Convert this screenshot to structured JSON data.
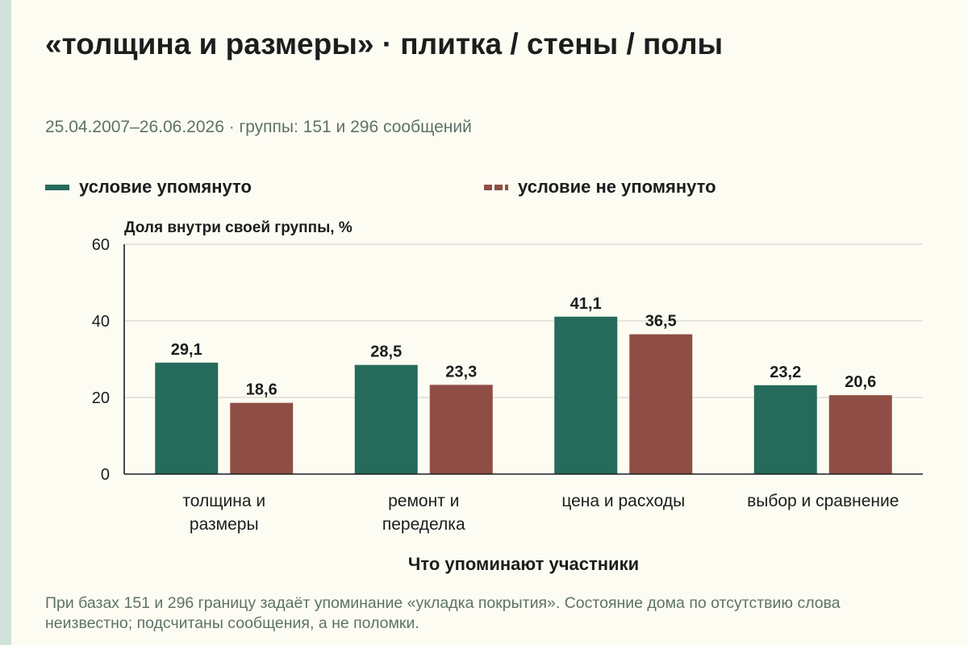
{
  "title": "«толщина и размеры» · плитка / стены / полы",
  "subtitle": "25.04.2007–26.06.2026 · группы: 151 и 296 сообщений",
  "footnote": "При базах 151 и 296 границу задаёт упоминание «укладка покрытия». Состояние дома по отсутствию слова неизвестно; подсчитаны сообщения, а не поломки.",
  "colors": {
    "mentioned": "#256a5a",
    "not_mentioned": "#8f4e45",
    "grid": "#d7d7d0",
    "axis": "#1d1d1d",
    "background": "#fdfcf3"
  },
  "chart_data": {
    "type": "bar",
    "title": "",
    "xlabel": "Что упоминают участники",
    "ylabel": "Доля внутри своей группы, %",
    "ylim": [
      0,
      60
    ],
    "yticks": [
      "0",
      "20",
      "40",
      "60"
    ],
    "grid": true,
    "legend_position": "top",
    "categories": [
      [
        "толщина и",
        "размеры"
      ],
      [
        "ремонт и",
        "переделка"
      ],
      [
        "цена и расходы"
      ],
      [
        "выбор и сравнение"
      ]
    ],
    "series": [
      {
        "name": "условие упомянуто",
        "values": [
          29.1,
          28.5,
          41.1,
          23.2
        ],
        "labels": [
          "29,1",
          "28,5",
          "41,1",
          "23,2"
        ]
      },
      {
        "name": "условие не упомянуто",
        "values": [
          18.6,
          23.3,
          36.5,
          20.6
        ],
        "labels": [
          "18,6",
          "23,3",
          "36,5",
          "20,6"
        ]
      }
    ]
  }
}
